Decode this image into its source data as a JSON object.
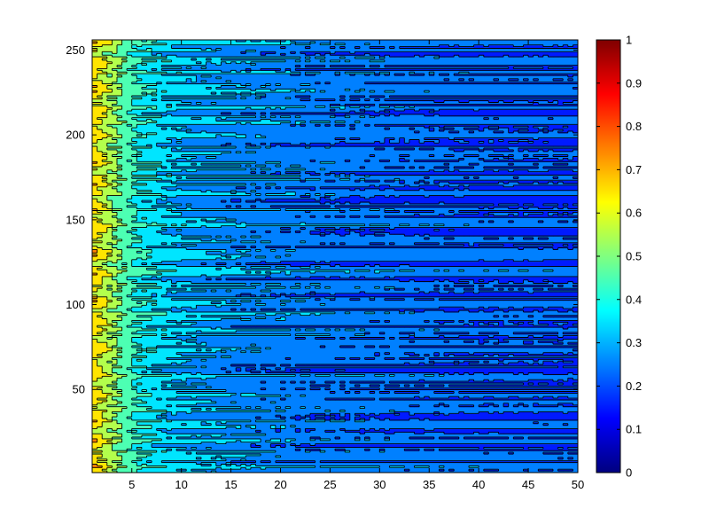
{
  "chart_data": {
    "type": "heatmap",
    "subtype": "filled-contour",
    "title": "",
    "xlabel": "",
    "ylabel": "",
    "xlim": [
      1,
      50
    ],
    "ylim": [
      1,
      256
    ],
    "x_ticks": [
      "5",
      "10",
      "15",
      "20",
      "25",
      "30",
      "35",
      "40",
      "45",
      "50"
    ],
    "y_ticks": [
      "50",
      "100",
      "150",
      "200",
      "250"
    ],
    "colorbar": {
      "colormap": "jet",
      "range": [
        0,
        1
      ],
      "ticks": [
        "0",
        "0.1",
        "0.2",
        "0.3",
        "0.4",
        "0.5",
        "0.6",
        "0.7",
        "0.8",
        "0.9",
        "1"
      ]
    },
    "value_trend": {
      "x": [
        1,
        2,
        3,
        4,
        5,
        6,
        8,
        10,
        12,
        15,
        20,
        25,
        30,
        35,
        40,
        45,
        50
      ],
      "typical_value": [
        0.65,
        0.6,
        0.53,
        0.47,
        0.42,
        0.38,
        0.34,
        0.31,
        0.29,
        0.27,
        0.25,
        0.24,
        0.23,
        0.22,
        0.21,
        0.21,
        0.2
      ]
    },
    "contour_color": "#000000"
  }
}
